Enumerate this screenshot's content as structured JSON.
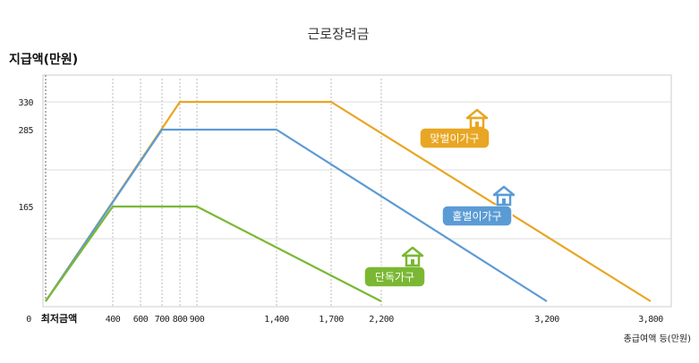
{
  "chart_data": {
    "type": "line",
    "title": "근로장려금",
    "ylabel": "지급액(만원)",
    "xlabel": "총급여액 등(만원)",
    "x_origin_label": "0",
    "x_min_label": "최저금액",
    "x_ticks": [
      400,
      600,
      700,
      800,
      900,
      1400,
      1700,
      2200,
      3200,
      3800
    ],
    "x_tick_labels": [
      "400",
      "600",
      "700",
      "800",
      "900",
      "1,400",
      "1,700",
      "2,200",
      "3,200",
      "3,800"
    ],
    "y_ticks": [
      165,
      285,
      330
    ],
    "y_tick_labels": [
      "165",
      "285",
      "330"
    ],
    "xlim": [
      0,
      3800
    ],
    "ylim": [
      0,
      370
    ],
    "grid": true,
    "series": [
      {
        "name": "맞벌이가구",
        "color": "#e8a623",
        "icon": "house-icon",
        "points": [
          [
            0,
            0
          ],
          [
            800,
            330
          ],
          [
            1700,
            330
          ],
          [
            3800,
            0
          ]
        ]
      },
      {
        "name": "홑벌이가구",
        "color": "#5b9bd5",
        "icon": "house-icon",
        "points": [
          [
            0,
            0
          ],
          [
            700,
            285
          ],
          [
            1400,
            285
          ],
          [
            3200,
            0
          ]
        ]
      },
      {
        "name": "단독가구",
        "color": "#7ab833",
        "icon": "house-icon",
        "points": [
          [
            0,
            0
          ],
          [
            400,
            165
          ],
          [
            900,
            165
          ],
          [
            2200,
            0
          ]
        ]
      }
    ]
  }
}
